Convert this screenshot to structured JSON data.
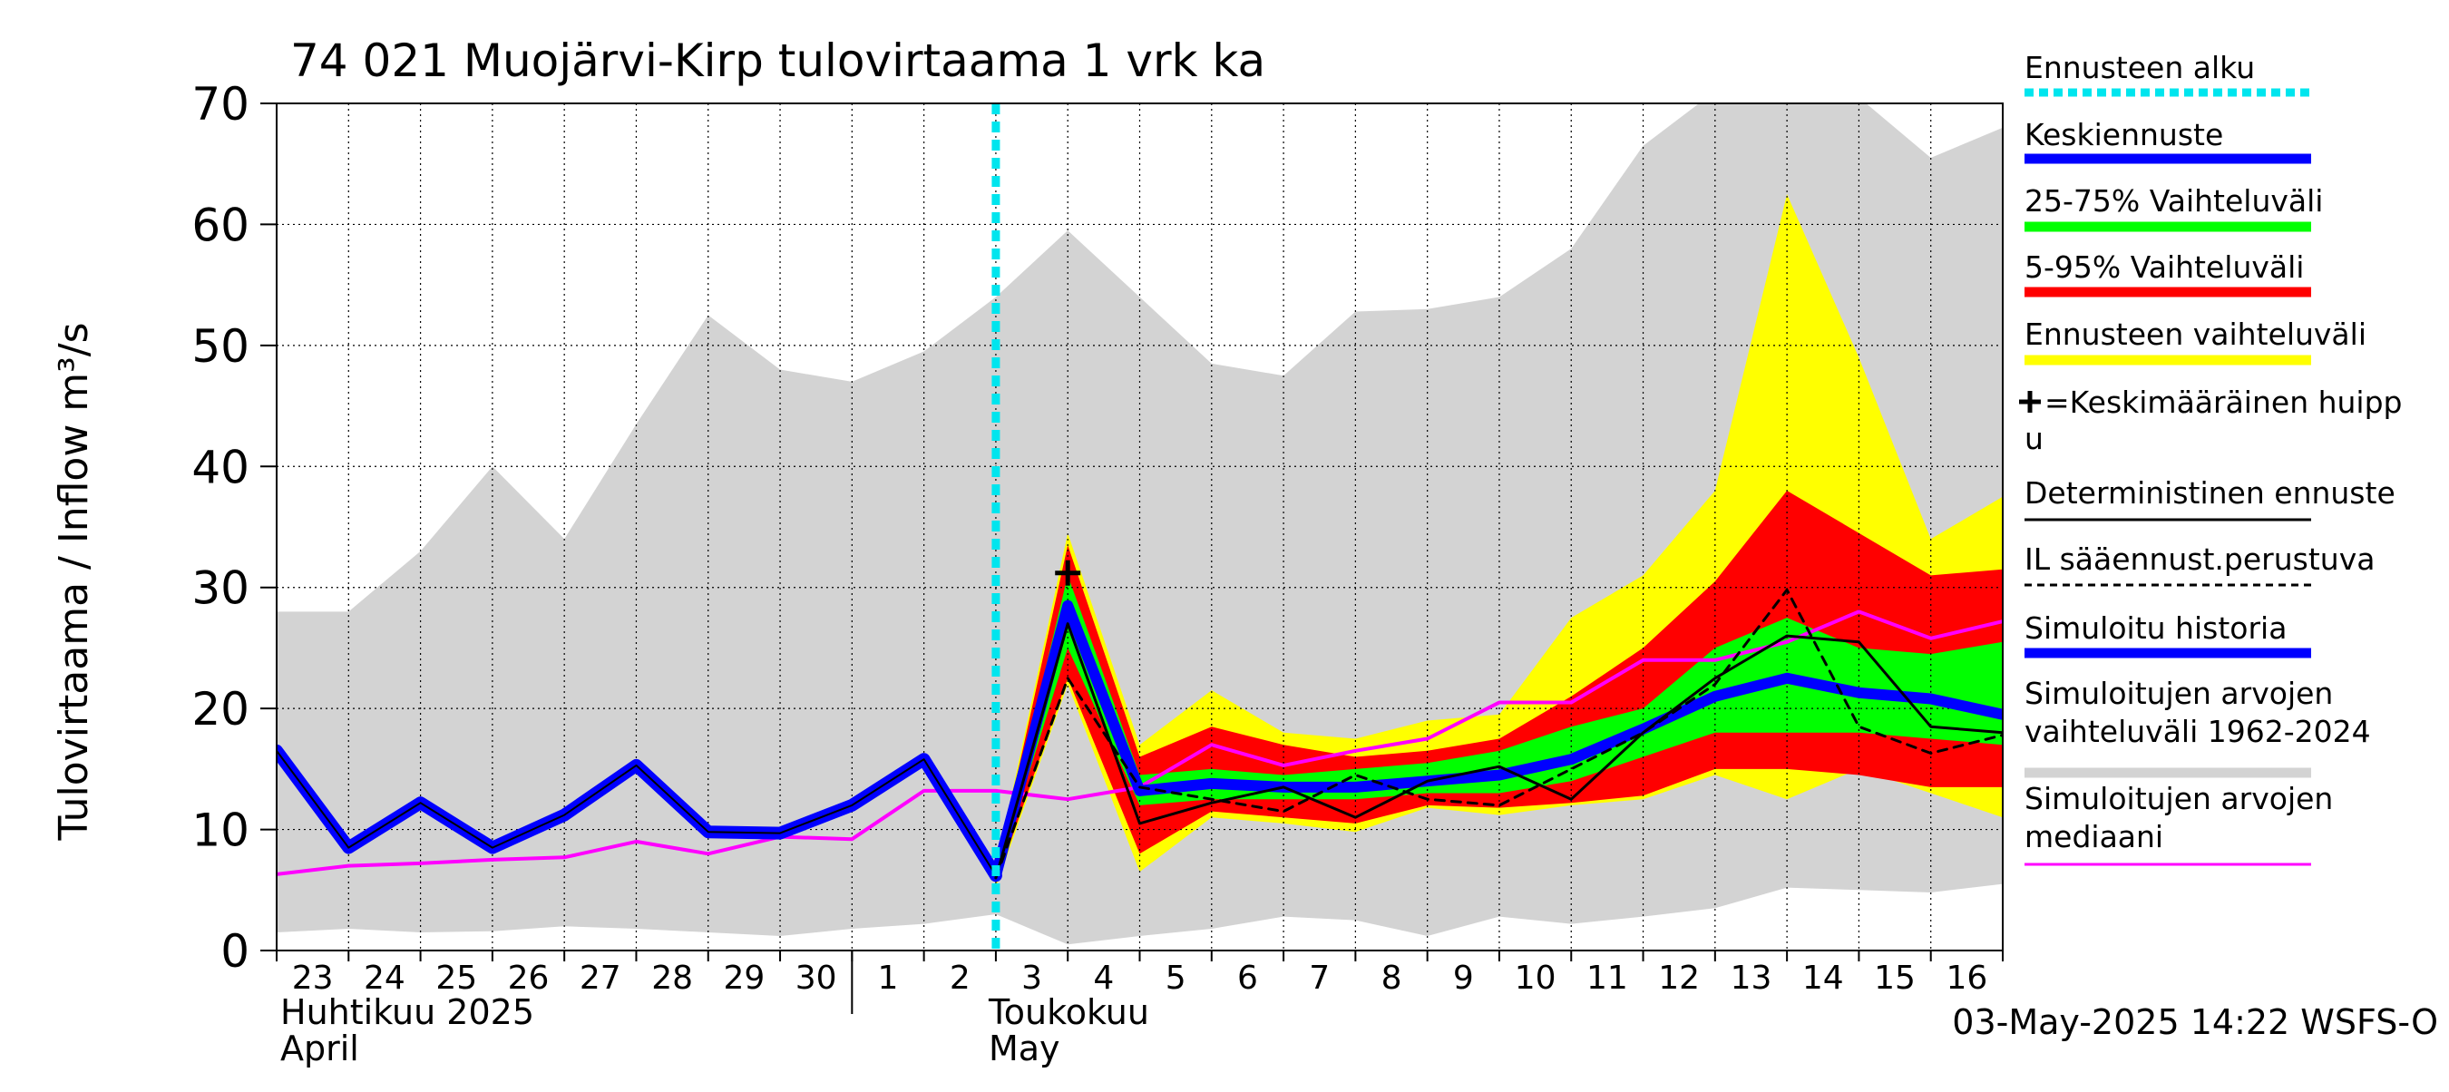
{
  "chart_data": {
    "type": "area",
    "title": "74 021 Muojärvi-Kirp tulovirtaama 1 vrk ka",
    "ylabel": "Tulovirtaama / Inflow   m³/s",
    "ylim": [
      0,
      70
    ],
    "yticks": [
      0,
      10,
      20,
      30,
      40,
      50,
      60,
      70
    ],
    "x_day_labels": [
      "23",
      "24",
      "25",
      "26",
      "27",
      "28",
      "29",
      "30",
      "1",
      "2",
      "3",
      "4",
      "5",
      "6",
      "7",
      "8",
      "9",
      "10",
      "11",
      "12",
      "13",
      "14",
      "15",
      "16"
    ],
    "x_dates": [
      "2025-04-23",
      "2025-04-24",
      "2025-04-25",
      "2025-04-26",
      "2025-04-27",
      "2025-04-28",
      "2025-04-29",
      "2025-04-30",
      "2025-05-01",
      "2025-05-02",
      "2025-05-03",
      "2025-05-04",
      "2025-05-05",
      "2025-05-06",
      "2025-05-07",
      "2025-05-08",
      "2025-05-09",
      "2025-05-10",
      "2025-05-11",
      "2025-05-12",
      "2025-05-13",
      "2025-05-14",
      "2025-05-15",
      "2025-05-16",
      "2025-05-17"
    ],
    "month_labels": [
      {
        "fi": "Huhtikuu  2025",
        "en": "April"
      },
      {
        "fi": "Toukokuu",
        "en": "May"
      }
    ],
    "forecast_start": "2025-05-03",
    "grid": true,
    "legend_position": "right",
    "footer": "03-May-2025 14:22 WSFS-O",
    "series": {
      "hist_range": {
        "name": "Simuloitujen arvojen vaihteluväli 1962-2024",
        "color": "#d3d3d3",
        "x": [
          "2025-04-23",
          "2025-04-24",
          "2025-04-25",
          "2025-04-26",
          "2025-04-27",
          "2025-04-28",
          "2025-04-29",
          "2025-04-30",
          "2025-05-01",
          "2025-05-02",
          "2025-05-03",
          "2025-05-04",
          "2025-05-05",
          "2025-05-06",
          "2025-05-07",
          "2025-05-08",
          "2025-05-09",
          "2025-05-10",
          "2025-05-11",
          "2025-05-12",
          "2025-05-13",
          "2025-05-14",
          "2025-05-15",
          "2025-05-16",
          "2025-05-17"
        ],
        "lower": [
          1.5,
          1.8,
          1.5,
          1.6,
          2.0,
          1.8,
          1.5,
          1.2,
          1.8,
          2.2,
          3.0,
          0.5,
          1.2,
          1.8,
          2.8,
          2.5,
          1.2,
          2.8,
          2.2,
          2.8,
          3.5,
          5.2,
          5.0,
          4.8,
          5.5
        ],
        "upper": [
          28.0,
          28.0,
          33.0,
          40.0,
          34.0,
          43.5,
          52.5,
          48.0,
          47.0,
          49.5,
          54.0,
          59.5,
          54.0,
          48.5,
          47.5,
          52.8,
          53.0,
          54.0,
          58.0,
          66.5,
          71.0,
          75.0,
          70.5,
          65.5,
          68.0
        ]
      },
      "forecast_range": {
        "name": "Ennusteen vaihteluväli",
        "color": "#ffff00",
        "x": [
          "2025-05-03",
          "2025-05-04",
          "2025-05-05",
          "2025-05-06",
          "2025-05-07",
          "2025-05-08",
          "2025-05-09",
          "2025-05-10",
          "2025-05-11",
          "2025-05-12",
          "2025-05-13",
          "2025-05-14",
          "2025-05-15",
          "2025-05-16",
          "2025-05-17"
        ],
        "lower": [
          5.2,
          22.0,
          6.5,
          11.0,
          10.5,
          9.8,
          11.8,
          11.2,
          12.0,
          12.5,
          14.5,
          12.5,
          15.0,
          13.0,
          11.0
        ],
        "upper": [
          6.8,
          34.5,
          17.0,
          21.5,
          18.0,
          17.5,
          19.0,
          19.5,
          27.5,
          31.0,
          38.0,
          62.5,
          49.0,
          34.0,
          37.5
        ]
      },
      "p5_95": {
        "name": "5-95% Vaihteluväli",
        "color": "#ff0000",
        "x": [
          "2025-05-03",
          "2025-05-04",
          "2025-05-05",
          "2025-05-06",
          "2025-05-07",
          "2025-05-08",
          "2025-05-09",
          "2025-05-10",
          "2025-05-11",
          "2025-05-12",
          "2025-05-13",
          "2025-05-14",
          "2025-05-15",
          "2025-05-16",
          "2025-05-17"
        ],
        "lower": [
          5.5,
          22.5,
          8.0,
          11.5,
          11.0,
          10.5,
          12.0,
          11.8,
          12.2,
          12.8,
          15.0,
          15.0,
          14.5,
          13.5,
          13.5
        ],
        "upper": [
          6.5,
          33.5,
          16.0,
          18.5,
          17.0,
          16.0,
          16.5,
          17.5,
          21.0,
          25.0,
          30.5,
          38.0,
          34.5,
          31.0,
          31.5
        ]
      },
      "p25_75": {
        "name": "25-75% Vaihteluväli",
        "color": "#00ff00",
        "x": [
          "2025-05-03",
          "2025-05-04",
          "2025-05-05",
          "2025-05-06",
          "2025-05-07",
          "2025-05-08",
          "2025-05-09",
          "2025-05-10",
          "2025-05-11",
          "2025-05-12",
          "2025-05-13",
          "2025-05-14",
          "2025-05-15",
          "2025-05-16",
          "2025-05-17"
        ],
        "lower": [
          5.8,
          25.0,
          12.0,
          12.5,
          12.5,
          12.5,
          13.0,
          13.0,
          14.0,
          16.0,
          18.0,
          18.0,
          18.0,
          17.5,
          17.0
        ],
        "upper": [
          6.2,
          31.0,
          14.5,
          15.0,
          14.5,
          15.0,
          15.5,
          16.5,
          18.5,
          20.0,
          25.0,
          27.5,
          25.0,
          24.5,
          25.5
        ]
      },
      "median_sim": {
        "name": "Simuloitujen arvojen mediaani",
        "color": "#ff00ff",
        "x": [
          "2025-04-23",
          "2025-04-24",
          "2025-04-25",
          "2025-04-26",
          "2025-04-27",
          "2025-04-28",
          "2025-04-29",
          "2025-04-30",
          "2025-05-01",
          "2025-05-02",
          "2025-05-03",
          "2025-05-04",
          "2025-05-05",
          "2025-05-06",
          "2025-05-07",
          "2025-05-08",
          "2025-05-09",
          "2025-05-10",
          "2025-05-11",
          "2025-05-12",
          "2025-05-13",
          "2025-05-14",
          "2025-05-15",
          "2025-05-16",
          "2025-05-17"
        ],
        "values": [
          6.3,
          7.0,
          7.2,
          7.5,
          7.7,
          9.0,
          8.0,
          9.4,
          9.2,
          13.2,
          13.2,
          12.5,
          13.5,
          17.0,
          15.3,
          16.5,
          17.5,
          20.5,
          20.5,
          24.0,
          24.0,
          25.5,
          28.0,
          25.8,
          27.2
        ]
      },
      "simulated_history": {
        "name": "Simuloitu historia",
        "color": "#0000ff",
        "x": [
          "2025-04-23",
          "2025-04-24",
          "2025-04-25",
          "2025-04-26",
          "2025-04-27",
          "2025-04-28",
          "2025-04-29",
          "2025-04-30",
          "2025-05-01",
          "2025-05-02",
          "2025-05-03"
        ],
        "values": [
          16.5,
          8.5,
          12.2,
          8.5,
          11.2,
          15.3,
          9.8,
          9.7,
          12.0,
          15.8,
          6.2
        ]
      },
      "central_forecast": {
        "name": "Keskiennuste",
        "color": "#0000ff",
        "x": [
          "2025-05-03",
          "2025-05-04",
          "2025-05-05",
          "2025-05-06",
          "2025-05-07",
          "2025-05-08",
          "2025-05-09",
          "2025-05-10",
          "2025-05-11",
          "2025-05-12",
          "2025-05-13",
          "2025-05-14",
          "2025-05-15",
          "2025-05-16",
          "2025-05-17"
        ],
        "values": [
          6.2,
          28.5,
          13.2,
          13.8,
          13.5,
          13.5,
          14.0,
          14.5,
          15.8,
          18.3,
          21.0,
          22.5,
          21.3,
          20.8,
          19.5
        ]
      },
      "deterministic": {
        "name": "Deterministinen ennuste",
        "color": "#000000",
        "x": [
          "2025-05-03",
          "2025-05-04",
          "2025-05-05",
          "2025-05-06",
          "2025-05-07",
          "2025-05-08",
          "2025-05-09",
          "2025-05-10",
          "2025-05-11",
          "2025-05-12",
          "2025-05-13",
          "2025-05-14",
          "2025-05-15",
          "2025-05-16",
          "2025-05-17"
        ],
        "values": [
          6.0,
          27.0,
          10.5,
          12.2,
          13.5,
          11.0,
          14.0,
          15.2,
          12.5,
          18.0,
          22.5,
          26.0,
          25.5,
          18.5,
          18.0
        ]
      },
      "il_weather": {
        "name": "IL sääennust.perustuva",
        "color": "#000000",
        "x": [
          "2025-05-03",
          "2025-05-04",
          "2025-05-05",
          "2025-05-06",
          "2025-05-07",
          "2025-05-08",
          "2025-05-09",
          "2025-05-10",
          "2025-05-11",
          "2025-05-12",
          "2025-05-13",
          "2025-05-14",
          "2025-05-15",
          "2025-05-16",
          "2025-05-17"
        ],
        "values": [
          6.0,
          22.5,
          13.5,
          12.5,
          11.5,
          14.5,
          12.5,
          12.0,
          15.0,
          18.0,
          22.0,
          29.8,
          18.5,
          16.3,
          17.8
        ]
      },
      "mean_peak": {
        "name": "=Keskimääräinen huippu",
        "x": "2025-05-04",
        "y": 31.2
      }
    },
    "legend": [
      {
        "label": "Ennusteen alku",
        "color": "#00e5ee",
        "style": "dotted-thick"
      },
      {
        "label": "Keskiennuste",
        "color": "#0000ff",
        "style": "thick"
      },
      {
        "label": "25-75% Vaihteluväli",
        "color": "#00ff00",
        "style": "thick"
      },
      {
        "label": "5-95% Vaihteluväli",
        "color": "#ff0000",
        "style": "thick"
      },
      {
        "label": "Ennusteen vaihteluväli",
        "color": "#ffff00",
        "style": "thick"
      },
      {
        "label": "=Keskimääräinen huippu",
        "color": "#000000",
        "style": "cross"
      },
      {
        "label": "Deterministinen ennuste",
        "color": "#000000",
        "style": "thin"
      },
      {
        "label": "IL sääennust.perustuva",
        "color": "#000000",
        "style": "dashed"
      },
      {
        "label": "Simuloitu historia",
        "color": "#0000ff",
        "style": "thick"
      },
      {
        "label": "Simuloitujen arvojen vaihteluväli 1962-2024",
        "color": "#d3d3d3",
        "style": "thick"
      },
      {
        "label": "Simuloitujen arvojen mediaani",
        "color": "#ff00ff",
        "style": "thin"
      }
    ]
  }
}
